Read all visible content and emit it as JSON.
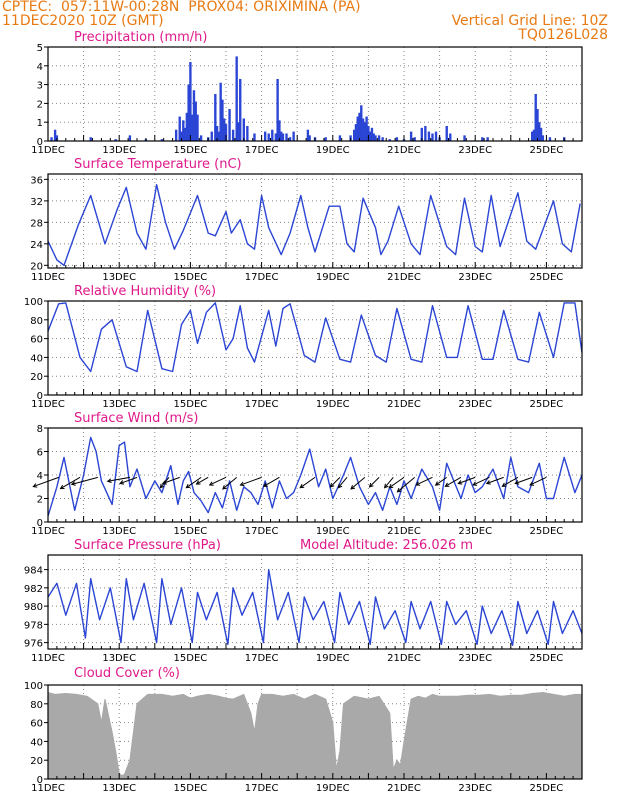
{
  "header": {
    "line1_left": "CPTEC:  057:11W-00:28N  PROX04: ORIXIMINA (PA)",
    "line2_left": "11DEC2020 10Z (GMT)",
    "line2_right": "Vertical Grid Line: 10Z",
    "line3_right": "TQ0126L028",
    "model_altitude": "Model Altitude: 256.026 m"
  },
  "colors": {
    "header": "#e87a12",
    "title": "#e0198a",
    "series": "#2b45d4",
    "cloud": "#a9a9a9"
  },
  "chart_data": [
    {
      "type": "bar",
      "title": "Precipitation (mm/h)",
      "ylim": [
        0,
        5
      ],
      "yticks": [
        0,
        1,
        2,
        3,
        4,
        5
      ],
      "xticks": [
        "11DEC",
        "13DEC",
        "15DEC",
        "17DEC",
        "19DEC",
        "21DEC",
        "23DEC",
        "25DEC"
      ],
      "x_unit": "day offset from 11DEC2020 10Z",
      "x": [
        0.1,
        0.2,
        0.25,
        1.2,
        1.9,
        2.3,
        2.75,
        3.2,
        3.6,
        3.7,
        3.75,
        3.8,
        3.85,
        3.9,
        3.95,
        4.0,
        4.05,
        4.1,
        4.15,
        4.2,
        4.3,
        4.5,
        4.6,
        4.7,
        4.75,
        4.8,
        4.85,
        4.9,
        4.95,
        5.0,
        5.1,
        5.2,
        5.3,
        5.35,
        5.4,
        5.5,
        5.6,
        5.8,
        6.1,
        6.2,
        6.3,
        6.4,
        6.45,
        6.5,
        6.55,
        6.6,
        6.7,
        6.8,
        6.9,
        7.3,
        7.35,
        7.5,
        7.8,
        8.2,
        8.5,
        8.6,
        8.65,
        8.7,
        8.75,
        8.8,
        8.85,
        8.9,
        8.95,
        9.0,
        9.05,
        9.1,
        9.15,
        9.2,
        9.3,
        9.4,
        9.6,
        9.8,
        10.0,
        10.2,
        10.3,
        10.5,
        10.6,
        10.7,
        10.8,
        10.9,
        11.0,
        11.2,
        11.3,
        11.7,
        12.2,
        12.35,
        13.6,
        13.65,
        13.7,
        13.75,
        13.8,
        13.85,
        13.9,
        14.1,
        14.5
      ],
      "values": [
        0.2,
        0.6,
        0.3,
        0.2,
        0.1,
        0.3,
        0.1,
        0.1,
        0.6,
        1.3,
        0.5,
        1.1,
        0.7,
        1.5,
        3.0,
        4.2,
        1.4,
        2.7,
        2.1,
        1.4,
        0.3,
        0.2,
        0.5,
        2.5,
        0.8,
        0.5,
        3.1,
        2.2,
        1.2,
        0.9,
        1.7,
        0.6,
        4.5,
        1.0,
        3.3,
        1.2,
        0.8,
        0.4,
        0.5,
        0.4,
        0.6,
        0.4,
        3.3,
        1.1,
        0.5,
        0.4,
        0.4,
        0.2,
        0.5,
        0.6,
        0.3,
        0.2,
        0.2,
        0.3,
        0.3,
        0.6,
        0.9,
        1.3,
        1.5,
        1.9,
        1.2,
        1.0,
        1.3,
        0.8,
        0.5,
        0.7,
        0.4,
        0.3,
        0.3,
        0.2,
        0.1,
        0.2,
        0.1,
        0.5,
        0.2,
        0.7,
        0.8,
        0.5,
        0.4,
        0.5,
        0.2,
        0.8,
        0.4,
        0.3,
        0.2,
        0.2,
        0.5,
        0.6,
        2.5,
        1.7,
        1.0,
        0.7,
        0.3,
        0.2,
        0.2
      ]
    },
    {
      "type": "line",
      "title": "Surface Temperature (nC)",
      "ylim": [
        19.5,
        37
      ],
      "yticks": [
        20,
        24,
        28,
        32,
        36
      ],
      "xticks": [
        "11DEC",
        "13DEC",
        "15DEC",
        "17DEC",
        "19DEC",
        "21DEC",
        "23DEC",
        "25DEC"
      ],
      "x_unit": "day offset from 11DEC2020 10Z",
      "x": [
        0.0,
        0.25,
        0.45,
        0.85,
        1.2,
        1.6,
        1.95,
        2.2,
        2.5,
        2.75,
        3.05,
        3.3,
        3.55,
        3.8,
        4.2,
        4.5,
        4.7,
        5.0,
        5.15,
        5.4,
        5.6,
        5.8,
        6.0,
        6.2,
        6.55,
        6.8,
        7.1,
        7.3,
        7.5,
        7.9,
        8.2,
        8.4,
        8.6,
        8.85,
        9.2,
        9.35,
        9.55,
        9.85,
        10.2,
        10.45,
        10.75,
        11.2,
        11.45,
        11.7,
        12.0,
        12.2,
        12.45,
        12.7,
        13.2,
        13.45,
        13.7,
        14.2,
        14.45,
        14.7,
        14.95
      ],
      "values": [
        24.5,
        21.0,
        20.0,
        27.5,
        33.0,
        24.0,
        30.5,
        34.5,
        26.0,
        23.0,
        35.0,
        28.0,
        23.0,
        26.5,
        33.0,
        26.0,
        25.5,
        30.0,
        26.0,
        28.5,
        24.0,
        23.0,
        33.0,
        27.0,
        22.0,
        26.0,
        33.0,
        27.0,
        22.5,
        31.0,
        31.0,
        24.0,
        22.5,
        32.5,
        27.0,
        22.0,
        24.5,
        31.0,
        24.0,
        22.0,
        33.0,
        23.5,
        22.0,
        32.5,
        23.5,
        22.5,
        33.0,
        23.5,
        33.5,
        24.5,
        23.0,
        32.0,
        24.0,
        22.5,
        31.5
      ]
    },
    {
      "type": "line",
      "title": "Relative Humidity (%)",
      "ylim": [
        0,
        100
      ],
      "yticks": [
        0,
        20,
        40,
        60,
        80,
        100
      ],
      "xticks": [
        "11DEC",
        "13DEC",
        "15DEC",
        "17DEC",
        "19DEC",
        "21DEC",
        "23DEC",
        "25DEC"
      ],
      "x_unit": "day offset from 11DEC2020 10Z",
      "x": [
        0.0,
        0.3,
        0.5,
        0.9,
        1.2,
        1.5,
        1.8,
        2.2,
        2.5,
        2.8,
        3.2,
        3.5,
        3.75,
        4.0,
        4.2,
        4.45,
        4.7,
        5.0,
        5.2,
        5.4,
        5.6,
        5.8,
        6.2,
        6.4,
        6.6,
        6.8,
        7.2,
        7.5,
        7.8,
        8.2,
        8.5,
        8.8,
        9.2,
        9.5,
        9.8,
        10.2,
        10.5,
        10.8,
        11.2,
        11.5,
        11.8,
        12.2,
        12.5,
        12.8,
        13.2,
        13.5,
        13.8,
        14.2,
        14.5,
        14.8,
        15.0
      ],
      "values": [
        68,
        97,
        98,
        40,
        25,
        70,
        80,
        30,
        25,
        90,
        28,
        25,
        75,
        90,
        55,
        88,
        98,
        48,
        60,
        95,
        50,
        35,
        90,
        52,
        92,
        97,
        42,
        35,
        82,
        38,
        35,
        85,
        42,
        35,
        92,
        38,
        35,
        95,
        40,
        40,
        95,
        38,
        38,
        90,
        38,
        35,
        88,
        40,
        98,
        98,
        45
      ]
    },
    {
      "type": "line",
      "title": "Surface Wind (m/s)",
      "ylim": [
        0,
        8
      ],
      "yticks": [
        0,
        2,
        4,
        6,
        8
      ],
      "xticks": [
        "11DEC",
        "13DEC",
        "15DEC",
        "17DEC",
        "19DEC",
        "21DEC",
        "23DEC",
        "25DEC"
      ],
      "x_unit": "day offset from 11DEC2020 10Z",
      "x": [
        0.0,
        0.25,
        0.45,
        0.75,
        1.0,
        1.2,
        1.35,
        1.5,
        1.8,
        2.0,
        2.15,
        2.3,
        2.5,
        2.75,
        3.0,
        3.2,
        3.45,
        3.65,
        3.8,
        3.95,
        4.1,
        4.3,
        4.5,
        4.7,
        4.9,
        5.1,
        5.3,
        5.5,
        5.7,
        5.9,
        6.1,
        6.3,
        6.5,
        6.7,
        6.9,
        7.1,
        7.35,
        7.6,
        7.8,
        8.0,
        8.3,
        8.5,
        8.75,
        9.0,
        9.2,
        9.4,
        9.6,
        9.8,
        10.0,
        10.2,
        10.5,
        10.8,
        11.0,
        11.2,
        11.4,
        11.6,
        11.8,
        12.0,
        12.2,
        12.5,
        12.8,
        13.0,
        13.2,
        13.5,
        13.8,
        14.0,
        14.2,
        14.5,
        14.8,
        15.0
      ],
      "values": [
        0.5,
        3.0,
        5.5,
        1.0,
        4.0,
        7.2,
        6.0,
        3.5,
        1.5,
        6.5,
        6.8,
        3.0,
        4.5,
        2.0,
        3.5,
        2.5,
        4.8,
        1.5,
        3.5,
        4.3,
        2.5,
        1.8,
        0.8,
        2.5,
        1.2,
        3.5,
        1.0,
        3.0,
        2.5,
        1.5,
        3.5,
        1.2,
        3.5,
        2.0,
        2.5,
        4.0,
        6.2,
        3.0,
        4.5,
        2.0,
        4.0,
        5.5,
        3.0,
        1.5,
        2.5,
        1.0,
        3.0,
        1.5,
        3.5,
        2.0,
        4.5,
        3.0,
        1.0,
        5.0,
        3.5,
        2.0,
        4.0,
        2.5,
        3.0,
        4.5,
        2.0,
        5.5,
        3.0,
        2.5,
        5.0,
        2.0,
        2.0,
        5.5,
        2.5,
        4.0
      ],
      "arrows_x": [
        0.3,
        0.9,
        1.4,
        2.3,
        2.5,
        3.4,
        3.7,
        4.3,
        4.5,
        5.0,
        5.3,
        6.0,
        6.5,
        7.5,
        8.2,
        8.4,
        8.9,
        9.3,
        9.7,
        10.0,
        10.3,
        10.8,
        11.2,
        11.6,
        12.0,
        12.4,
        12.8,
        13.2,
        13.6,
        14.0
      ],
      "arrows_dir_deg": [
        200,
        210,
        195,
        190,
        200,
        230,
        200,
        215,
        210,
        205,
        220,
        200,
        210,
        215,
        225,
        230,
        220,
        225,
        230,
        215,
        220,
        205,
        215,
        210,
        200,
        205,
        200,
        210,
        200,
        205
      ],
      "arrows_len": [
        3.0,
        2.5,
        3.0,
        2.5,
        2.0,
        1.5,
        2.0,
        2.0,
        1.5,
        2.0,
        2.0,
        2.5,
        2.0,
        2.0,
        1.5,
        1.5,
        2.0,
        1.5,
        1.5,
        2.0,
        2.5,
        2.0,
        1.5,
        2.0,
        2.0,
        2.0,
        2.0,
        2.0,
        2.0,
        2.0
      ]
    },
    {
      "type": "line",
      "title": "Surface Pressure (hPa)",
      "ylim": [
        975.3,
        985.6
      ],
      "yticks": [
        976,
        978,
        980,
        982,
        984
      ],
      "xticks": [
        "11DEC",
        "13DEC",
        "15DEC",
        "17DEC",
        "19DEC",
        "21DEC",
        "23DEC",
        "25DEC"
      ],
      "x_unit": "day offset from 11DEC2020 10Z",
      "x": [
        0.0,
        0.25,
        0.5,
        0.8,
        1.05,
        1.2,
        1.45,
        1.75,
        2.05,
        2.2,
        2.4,
        2.7,
        3.05,
        3.2,
        3.45,
        3.75,
        4.05,
        4.2,
        4.45,
        4.75,
        5.05,
        5.2,
        5.45,
        5.75,
        6.05,
        6.2,
        6.45,
        6.75,
        7.05,
        7.2,
        7.45,
        7.75,
        8.05,
        8.2,
        8.45,
        8.75,
        9.05,
        9.2,
        9.45,
        9.75,
        10.05,
        10.2,
        10.45,
        10.75,
        11.05,
        11.2,
        11.45,
        11.75,
        12.05,
        12.2,
        12.45,
        12.75,
        13.05,
        13.2,
        13.45,
        13.75,
        14.05,
        14.2,
        14.45,
        14.75,
        15.0
      ],
      "values": [
        981.0,
        982.5,
        979.0,
        982.5,
        976.5,
        983.0,
        978.5,
        982.0,
        976.0,
        983.0,
        978.5,
        982.5,
        976.0,
        983.0,
        978.0,
        982.0,
        976.0,
        981.5,
        978.5,
        981.5,
        975.8,
        982.0,
        979.0,
        981.5,
        976.0,
        984.0,
        978.5,
        981.5,
        976.0,
        981.0,
        978.5,
        980.5,
        976.0,
        981.5,
        978.0,
        980.5,
        975.8,
        981.0,
        977.5,
        979.5,
        976.0,
        980.5,
        977.5,
        980.5,
        975.8,
        980.5,
        978.0,
        979.5,
        975.8,
        980.0,
        977.0,
        979.5,
        975.7,
        980.5,
        977.0,
        979.5,
        975.8,
        980.5,
        977.0,
        979.5,
        977.0
      ]
    },
    {
      "type": "area",
      "title": "Cloud Cover (%)",
      "ylim": [
        0,
        100
      ],
      "yticks": [
        0,
        20,
        40,
        60,
        80,
        100
      ],
      "xticks": [
        "11DEC",
        "13DEC",
        "15DEC",
        "17DEC",
        "19DEC",
        "21DEC",
        "23DEC",
        "25DEC"
      ],
      "x_unit": "day offset from 11DEC2020 10Z",
      "x": [
        0.0,
        0.2,
        0.5,
        0.8,
        1.1,
        1.4,
        1.5,
        1.6,
        1.8,
        1.9,
        2.0,
        2.05,
        2.1,
        2.15,
        2.3,
        2.5,
        2.8,
        3.2,
        3.5,
        3.8,
        4.0,
        4.2,
        4.5,
        4.8,
        5.0,
        5.2,
        5.5,
        5.7,
        5.8,
        5.9,
        6.0,
        6.3,
        6.6,
        6.9,
        7.2,
        7.5,
        7.8,
        8.0,
        8.1,
        8.2,
        8.3,
        8.6,
        9.0,
        9.3,
        9.6,
        9.7,
        9.8,
        9.9,
        10.0,
        10.2,
        10.4,
        10.6,
        10.8,
        11.0,
        11.3,
        11.5,
        11.8,
        12.1,
        12.4,
        12.7,
        13.0,
        13.3,
        13.6,
        13.9,
        14.2,
        14.5,
        14.8,
        15.0
      ],
      "values": [
        92,
        90,
        91,
        90,
        88,
        80,
        60,
        85,
        50,
        30,
        6,
        4,
        4,
        5,
        20,
        80,
        90,
        90,
        88,
        90,
        86,
        88,
        90,
        88,
        86,
        85,
        90,
        70,
        50,
        80,
        90,
        90,
        88,
        90,
        85,
        90,
        85,
        60,
        10,
        30,
        80,
        88,
        85,
        88,
        70,
        10,
        20,
        15,
        40,
        85,
        88,
        86,
        90,
        88,
        88,
        88,
        89,
        89,
        90,
        88,
        89,
        89,
        91,
        92,
        90,
        88,
        90,
        90
      ]
    }
  ]
}
